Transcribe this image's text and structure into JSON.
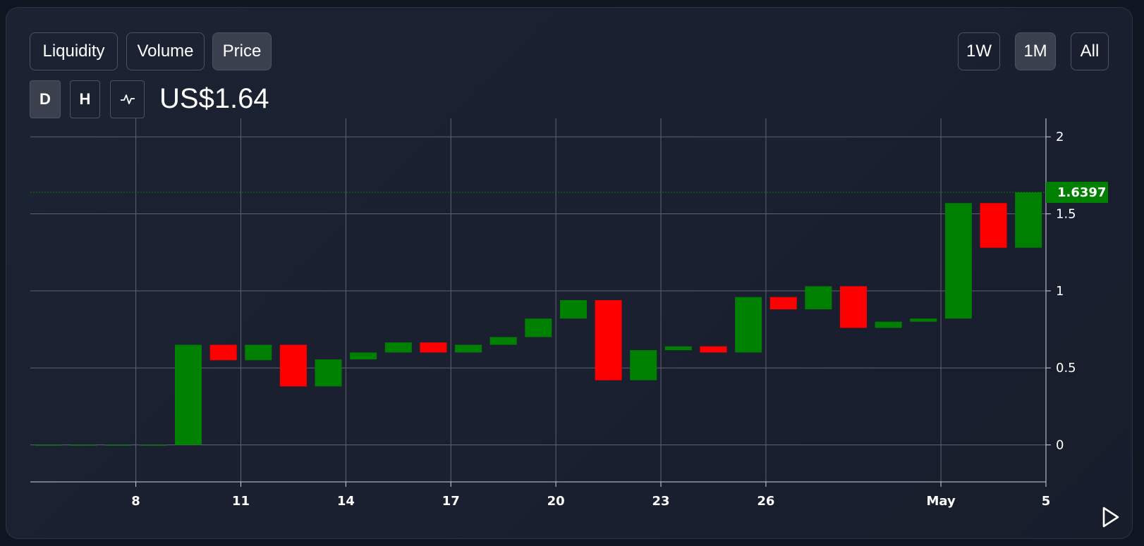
{
  "tabs": [
    {
      "label": "Liquidity",
      "active": false
    },
    {
      "label": "Volume",
      "active": false
    },
    {
      "label": "Price",
      "active": true
    }
  ],
  "ranges": [
    {
      "label": "1W",
      "active": false
    },
    {
      "label": "1M",
      "active": true
    },
    {
      "label": "All",
      "active": false
    }
  ],
  "intervals": [
    {
      "label": "D",
      "active": true
    },
    {
      "label": "H",
      "active": false
    }
  ],
  "line_toggle_icon": "line-chart-icon",
  "current_price": "US$1.64",
  "colors": {
    "up": "#008000",
    "down": "#ff0000",
    "grid": "#5c6370",
    "last_price_line": "#008000"
  },
  "chart_data": {
    "type": "candlestick",
    "last_price": 1.6397,
    "last_price_label": "1.6397",
    "ylim": [
      -0.24,
      2.12
    ],
    "y_ticks": [
      {
        "value": 2,
        "label": "2"
      },
      {
        "value": 1.5,
        "label": "1.5"
      },
      {
        "value": 1,
        "label": "1"
      },
      {
        "value": 0.5,
        "label": "0.5"
      },
      {
        "value": 0,
        "label": "0"
      }
    ],
    "x_ticks": [
      {
        "index": 2.5,
        "label": "8"
      },
      {
        "index": 5.5,
        "label": "11"
      },
      {
        "index": 8.5,
        "label": "14"
      },
      {
        "index": 11.5,
        "label": "17"
      },
      {
        "index": 14.5,
        "label": "20"
      },
      {
        "index": 17.5,
        "label": "23"
      },
      {
        "index": 20.5,
        "label": "26"
      },
      {
        "index": 25.5,
        "label": "May"
      },
      {
        "index": 28.5,
        "label": "5"
      }
    ],
    "candles": [
      {
        "open": 0.0,
        "close": 0.0
      },
      {
        "open": 0.0,
        "close": 0.0
      },
      {
        "open": 0.0,
        "close": 0.0
      },
      {
        "open": 0.0,
        "close": 0.0
      },
      {
        "open": 0.0,
        "close": 0.65
      },
      {
        "open": 0.65,
        "close": 0.55
      },
      {
        "open": 0.55,
        "close": 0.65
      },
      {
        "open": 0.65,
        "close": 0.38
      },
      {
        "open": 0.38,
        "close": 0.555
      },
      {
        "open": 0.555,
        "close": 0.6
      },
      {
        "open": 0.6,
        "close": 0.665
      },
      {
        "open": 0.665,
        "close": 0.6
      },
      {
        "open": 0.6,
        "close": 0.65
      },
      {
        "open": 0.65,
        "close": 0.7
      },
      {
        "open": 0.7,
        "close": 0.82
      },
      {
        "open": 0.82,
        "close": 0.94
      },
      {
        "open": 0.94,
        "close": 0.42
      },
      {
        "open": 0.42,
        "close": 0.615
      },
      {
        "open": 0.615,
        "close": 0.64
      },
      {
        "open": 0.64,
        "close": 0.6
      },
      {
        "open": 0.6,
        "close": 0.96
      },
      {
        "open": 0.96,
        "close": 0.88
      },
      {
        "open": 0.88,
        "close": 1.03
      },
      {
        "open": 1.03,
        "close": 0.76
      },
      {
        "open": 0.76,
        "close": 0.8
      },
      {
        "open": 0.8,
        "close": 0.82
      },
      {
        "open": 0.82,
        "close": 1.57
      },
      {
        "open": 1.57,
        "close": 1.28
      },
      {
        "open": 1.28,
        "close": 1.6397
      }
    ]
  }
}
